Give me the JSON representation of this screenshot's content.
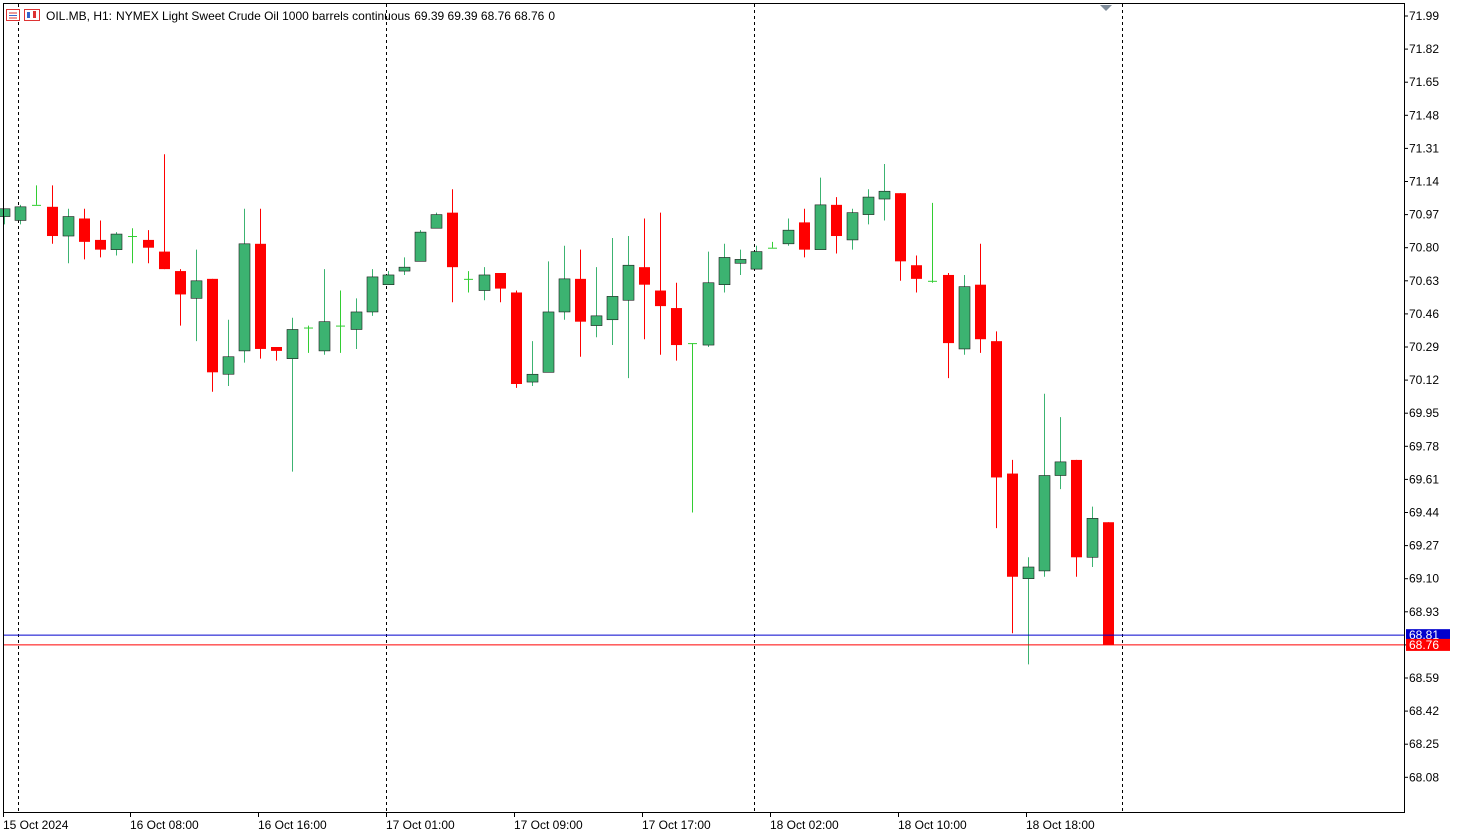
{
  "header": {
    "symbol": "OIL.MB, H1:",
    "description": "NYMEX Light Sweet Crude Oil 1000 barrels continuous",
    "ohlc": "69.39 69.39 68.76 68.76",
    "volume": "0"
  },
  "colors": {
    "bull": "#3cb371",
    "bear": "#ff0000",
    "doji": "#32cd32",
    "ask_line": "#0000cd",
    "bid_line": "#ff0000",
    "grid": "#000000"
  },
  "chart_data": {
    "type": "candlestick",
    "timeframe": "H1",
    "ylim": [
      67.93,
      72.05
    ],
    "y_ticks": [
      "71.99",
      "71.82",
      "71.65",
      "71.48",
      "71.31",
      "71.14",
      "70.97",
      "70.80",
      "70.63",
      "70.46",
      "70.29",
      "70.12",
      "69.95",
      "69.78",
      "69.61",
      "69.44",
      "69.27",
      "69.10",
      "68.93",
      "68.76",
      "68.59",
      "68.42",
      "68.25",
      "68.08"
    ],
    "x_ticks": [
      "15 Oct 2024",
      "16 Oct 08:00",
      "16 Oct 16:00",
      "17 Oct 01:00",
      "17 Oct 09:00",
      "17 Oct 17:00",
      "18 Oct 02:00",
      "18 Oct 10:00",
      "18 Oct 18:00"
    ],
    "ask_price": "68.81",
    "bid_price": "68.76",
    "candles": [
      [
        70.96,
        71.0,
        70.92,
        71.0
      ],
      [
        70.94,
        71.02,
        70.92,
        71.01
      ],
      [
        71.02,
        71.12,
        71.02,
        71.03
      ],
      [
        71.01,
        71.12,
        70.82,
        70.86
      ],
      [
        70.86,
        71.0,
        70.72,
        70.96
      ],
      [
        70.95,
        71.0,
        70.74,
        70.83
      ],
      [
        70.84,
        70.94,
        70.75,
        70.79
      ],
      [
        70.79,
        70.88,
        70.76,
        70.87
      ],
      [
        70.86,
        70.9,
        70.72,
        70.87
      ],
      [
        70.84,
        70.89,
        70.72,
        70.8
      ],
      [
        70.78,
        71.28,
        70.69,
        70.69
      ],
      [
        70.68,
        70.69,
        70.4,
        70.56
      ],
      [
        70.54,
        70.79,
        70.32,
        70.63
      ],
      [
        70.64,
        70.64,
        70.06,
        70.16
      ],
      [
        70.15,
        70.43,
        70.09,
        70.24
      ],
      [
        70.27,
        71.0,
        70.21,
        70.82
      ],
      [
        70.82,
        71.0,
        70.23,
        70.28
      ],
      [
        70.29,
        70.29,
        70.22,
        70.27
      ],
      [
        70.23,
        70.44,
        69.65,
        70.38
      ],
      [
        70.39,
        70.4,
        70.26,
        70.39
      ],
      [
        70.27,
        70.69,
        70.25,
        70.42
      ],
      [
        70.4,
        70.58,
        70.26,
        70.4
      ],
      [
        70.38,
        70.54,
        70.28,
        70.47
      ],
      [
        70.47,
        70.69,
        70.45,
        70.65
      ],
      [
        70.61,
        70.68,
        70.61,
        70.66
      ],
      [
        70.68,
        70.75,
        70.66,
        70.7
      ],
      [
        70.73,
        70.89,
        70.73,
        70.88
      ],
      [
        70.9,
        70.98,
        70.9,
        70.97
      ],
      [
        70.98,
        71.1,
        70.52,
        70.7
      ],
      [
        70.64,
        70.68,
        70.57,
        70.64
      ],
      [
        70.58,
        70.7,
        70.53,
        70.66
      ],
      [
        70.67,
        70.67,
        70.52,
        70.59
      ],
      [
        70.57,
        70.58,
        70.08,
        70.1
      ],
      [
        70.11,
        70.32,
        70.09,
        70.15
      ],
      [
        70.16,
        70.73,
        70.16,
        70.47
      ],
      [
        70.47,
        70.81,
        70.43,
        70.64
      ],
      [
        70.64,
        70.79,
        70.24,
        70.42
      ],
      [
        70.4,
        70.7,
        70.34,
        70.45
      ],
      [
        70.43,
        70.85,
        70.3,
        70.55
      ],
      [
        70.53,
        70.86,
        70.13,
        70.71
      ],
      [
        70.7,
        70.95,
        70.33,
        70.61
      ],
      [
        70.58,
        70.98,
        70.25,
        70.5
      ],
      [
        70.49,
        70.62,
        70.22,
        70.3
      ],
      [
        70.31,
        70.31,
        69.44,
        70.31
      ],
      [
        70.3,
        70.78,
        70.29,
        70.62
      ],
      [
        70.61,
        70.82,
        70.57,
        70.75
      ],
      [
        70.72,
        70.79,
        70.66,
        70.74
      ],
      [
        70.69,
        70.81,
        70.69,
        70.78
      ],
      [
        70.8,
        70.83,
        70.8,
        70.81
      ],
      [
        70.82,
        70.95,
        70.81,
        70.89
      ],
      [
        70.93,
        71.0,
        70.75,
        70.79
      ],
      [
        70.79,
        71.16,
        70.79,
        71.02
      ],
      [
        71.02,
        71.06,
        70.77,
        70.86
      ],
      [
        70.84,
        71.0,
        70.79,
        70.98
      ],
      [
        70.97,
        71.1,
        70.92,
        71.06
      ],
      [
        71.05,
        71.23,
        70.94,
        71.09
      ],
      [
        71.08,
        71.08,
        70.63,
        70.73
      ],
      [
        70.71,
        70.76,
        70.57,
        70.64
      ],
      [
        70.63,
        71.03,
        70.62,
        70.64
      ],
      [
        70.66,
        70.67,
        70.13,
        70.31
      ],
      [
        70.28,
        70.66,
        70.25,
        70.6
      ],
      [
        70.61,
        70.82,
        70.26,
        70.33
      ],
      [
        70.32,
        70.37,
        69.36,
        69.62
      ],
      [
        69.64,
        69.71,
        68.82,
        69.11
      ],
      [
        69.1,
        69.21,
        68.66,
        69.16
      ],
      [
        69.14,
        70.05,
        69.11,
        69.63
      ],
      [
        69.63,
        69.93,
        69.56,
        69.7
      ],
      [
        69.71,
        69.71,
        69.11,
        69.21
      ],
      [
        69.21,
        69.47,
        69.16,
        69.41
      ],
      [
        69.39,
        69.39,
        68.76,
        68.76
      ]
    ]
  }
}
